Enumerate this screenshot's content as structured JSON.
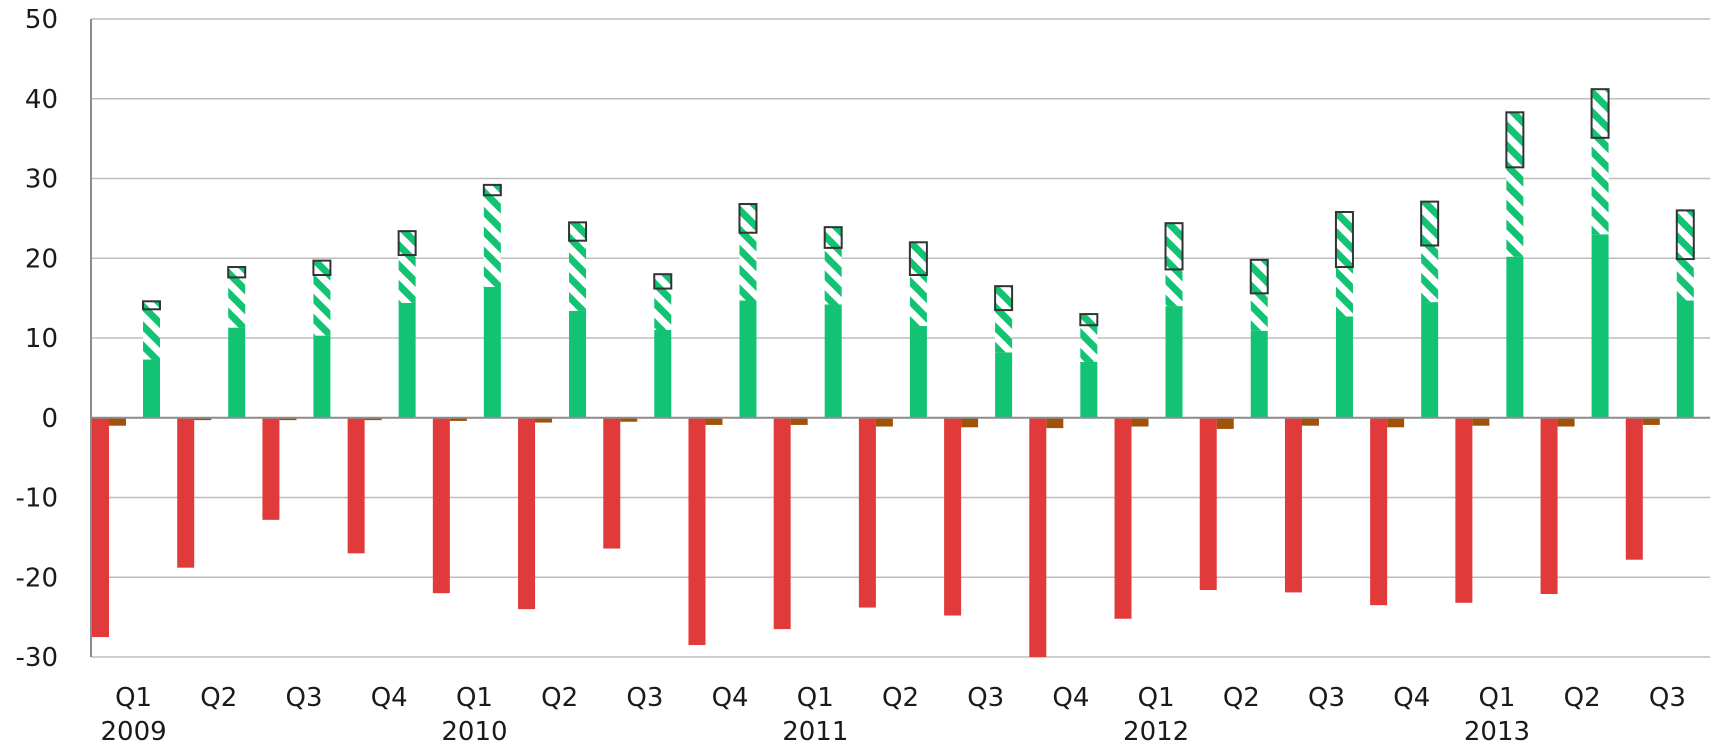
{
  "chart_data": {
    "type": "bar",
    "title": "",
    "xlabel": "",
    "ylabel": "",
    "ylim": [
      -30,
      50
    ],
    "yticks": [
      -30,
      -20,
      -10,
      0,
      10,
      20,
      30,
      40,
      50
    ],
    "grid": true,
    "categories": [
      "Q1",
      "Q2",
      "Q3",
      "Q4",
      "Q1",
      "Q2",
      "Q3",
      "Q4",
      "Q1",
      "Q2",
      "Q3",
      "Q4",
      "Q1",
      "Q2",
      "Q3",
      "Q4",
      "Q1",
      "Q2",
      "Q3"
    ],
    "year_labels": [
      {
        "index": 0,
        "label": "2009"
      },
      {
        "index": 4,
        "label": "2010"
      },
      {
        "index": 8,
        "label": "2011"
      },
      {
        "index": 12,
        "label": "2012"
      },
      {
        "index": 16,
        "label": "2013"
      }
    ],
    "series": [
      {
        "color": "#e03a3a",
        "values": [
          -27.5,
          -18.8,
          -12.8,
          -17.0,
          -22.0,
          -24.0,
          -16.4,
          -28.5,
          -26.5,
          -23.8,
          -24.8,
          -30.0,
          -25.2,
          -21.6,
          -21.9,
          -23.5,
          -23.2,
          -22.1,
          -17.8
        ]
      },
      {
        "color": "#a0520a",
        "values": [
          -1.0,
          -0.3,
          -0.3,
          -0.3,
          -0.4,
          -0.6,
          -0.5,
          -0.9,
          -0.9,
          -1.1,
          -1.2,
          -1.3,
          -1.1,
          -1.4,
          -1.0,
          -1.2,
          -1.0,
          -1.1,
          -0.9
        ]
      },
      {
        "color": "#12c374",
        "values": [
          7.3,
          11.3,
          10.3,
          14.4,
          16.4,
          13.4,
          11.0,
          14.7,
          14.2,
          11.5,
          8.2,
          7.0,
          14.0,
          10.9,
          12.7,
          14.5,
          20.2,
          23.0,
          14.7
        ]
      },
      {
        "color": "#12c374",
        "pattern": "diagonal-hatch",
        "values": [
          6.3,
          6.3,
          7.6,
          6.0,
          11.5,
          8.8,
          5.2,
          8.5,
          7.1,
          6.4,
          5.3,
          4.6,
          4.6,
          4.7,
          6.2,
          7.1,
          11.2,
          12.1,
          5.2
        ]
      },
      {
        "color": "#12c374",
        "pattern": "diagonal-hatch-outlined",
        "values": [
          1.0,
          1.3,
          1.8,
          3.0,
          1.3,
          2.3,
          1.8,
          3.6,
          2.6,
          4.1,
          3.0,
          1.4,
          5.8,
          4.2,
          6.9,
          5.5,
          6.9,
          6.1,
          6.1
        ]
      }
    ]
  }
}
